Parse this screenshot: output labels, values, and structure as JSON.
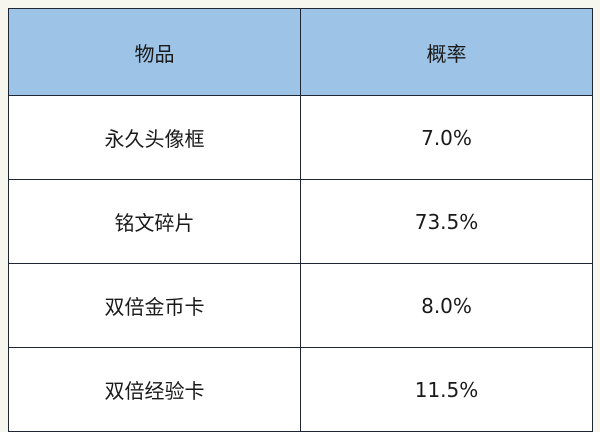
{
  "table": {
    "headers": [
      "物品",
      "概率"
    ],
    "rows": [
      [
        "永久头像框",
        "7.0%"
      ],
      [
        "铭文碎片",
        "73.5%"
      ],
      [
        "双倍金币卡",
        "8.0%"
      ],
      [
        "双倍经验卡",
        "11.5%"
      ]
    ]
  },
  "colors": {
    "header_bg": "#9dc3e6",
    "border": "#1f2633"
  }
}
